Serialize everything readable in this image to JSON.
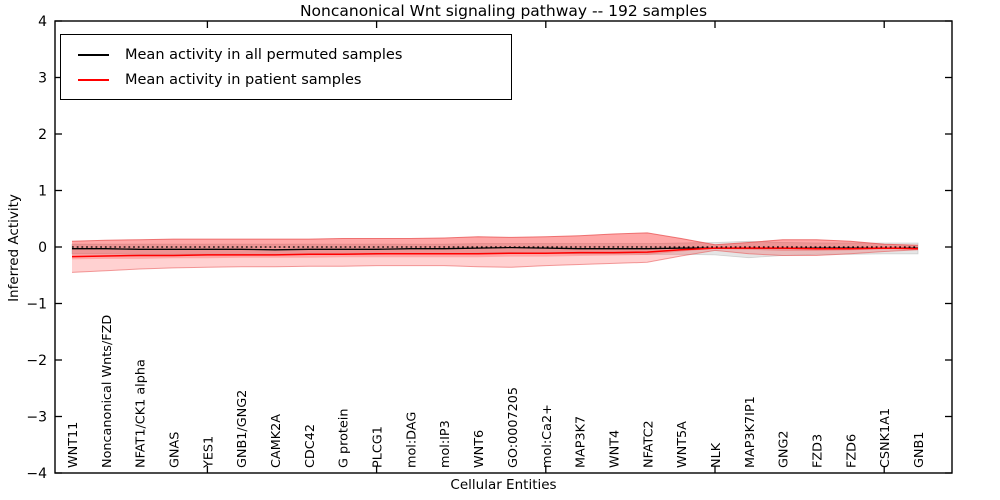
{
  "title": "Noncanonical Wnt signaling pathway -- 192 samples",
  "axes": {
    "ylabel": "Inferred Activity",
    "xlabel": "Cellular Entities"
  },
  "legend": {
    "items": [
      {
        "label": "Mean activity in all permuted samples",
        "color": "#000000"
      },
      {
        "label": "Mean activity in patient samples",
        "color": "#ff0000"
      }
    ]
  },
  "colors": {
    "permuted_line": "#000000",
    "patient_line": "#ff0000",
    "patient_band_fill": "#ff0000",
    "patient_band_edge": "#e85050",
    "permuted_band_fill": "#000000",
    "permuted_band_edge": "#bbbbbb",
    "zero_line": "#000000",
    "frame": "#000000"
  },
  "chart_data": {
    "type": "line",
    "title": "Noncanonical Wnt signaling pathway -- 192 samples",
    "xlabel": "Cellular Entities",
    "ylabel": "Inferred Activity",
    "ylim": [
      -4,
      4
    ],
    "yticks": [
      4,
      3,
      2,
      1,
      0,
      -1,
      -2,
      -3,
      -4
    ],
    "x_major_tick_indices": [
      4,
      9,
      14,
      19,
      24
    ],
    "legend_position": "upper left",
    "grid": false,
    "zero_reference_line": 0,
    "categories": [
      "WNT11",
      "Noncanonical Wnts/FZD",
      "NFAT1/CK1 alpha",
      "GNAS",
      "YES1",
      "GNB1/GNG2",
      "CAMK2A",
      "CDC42",
      "G protein",
      "PLCG1",
      "mol:DAG",
      "mol:IP3",
      "WNT6",
      "GO:0007205",
      "mol:Ca2+",
      "MAP3K7",
      "WNT4",
      "NFATC2",
      "WNT5A",
      "NLK",
      "MAP3K7IP1",
      "GNG2",
      "FZD3",
      "FZD6",
      "CSNK1A1",
      "GNB1"
    ],
    "series": [
      {
        "name": "Mean activity in all permuted samples",
        "values": [
          -0.03,
          -0.03,
          -0.04,
          -0.04,
          -0.04,
          -0.04,
          -0.05,
          -0.04,
          -0.04,
          -0.04,
          -0.03,
          -0.03,
          -0.02,
          -0.01,
          -0.02,
          -0.03,
          -0.03,
          -0.03,
          -0.02,
          -0.02,
          -0.02,
          -0.02,
          -0.02,
          -0.02,
          -0.02,
          -0.02
        ],
        "band_upper": [
          0.05,
          0.05,
          0.05,
          0.05,
          0.05,
          0.05,
          0.05,
          0.05,
          0.05,
          0.05,
          0.05,
          0.05,
          0.06,
          0.06,
          0.06,
          0.06,
          0.06,
          0.06,
          0.07,
          0.08,
          0.1,
          0.08,
          0.07,
          0.07,
          0.07,
          0.07
        ],
        "band_lower": [
          -0.12,
          -0.12,
          -0.13,
          -0.13,
          -0.13,
          -0.13,
          -0.14,
          -0.13,
          -0.13,
          -0.13,
          -0.12,
          -0.12,
          -0.11,
          -0.1,
          -0.11,
          -0.12,
          -0.12,
          -0.13,
          -0.13,
          -0.14,
          -0.19,
          -0.15,
          -0.13,
          -0.13,
          -0.12,
          -0.12
        ]
      },
      {
        "name": "Mean activity in patient samples",
        "values": [
          -0.17,
          -0.16,
          -0.15,
          -0.15,
          -0.14,
          -0.14,
          -0.14,
          -0.13,
          -0.13,
          -0.12,
          -0.12,
          -0.12,
          -0.12,
          -0.11,
          -0.11,
          -0.1,
          -0.1,
          -0.09,
          -0.05,
          -0.02,
          -0.02,
          -0.02,
          -0.03,
          -0.03,
          -0.02,
          -0.03
        ],
        "band_upper": [
          0.1,
          0.12,
          0.13,
          0.14,
          0.14,
          0.14,
          0.14,
          0.14,
          0.15,
          0.15,
          0.15,
          0.16,
          0.18,
          0.17,
          0.18,
          0.2,
          0.23,
          0.25,
          0.15,
          0.04,
          0.08,
          0.13,
          0.13,
          0.1,
          0.05,
          0.03
        ],
        "band_lower": [
          -0.45,
          -0.42,
          -0.39,
          -0.37,
          -0.36,
          -0.35,
          -0.35,
          -0.34,
          -0.34,
          -0.33,
          -0.33,
          -0.33,
          -0.35,
          -0.36,
          -0.33,
          -0.31,
          -0.29,
          -0.27,
          -0.16,
          -0.06,
          -0.12,
          -0.15,
          -0.15,
          -0.12,
          -0.08,
          -0.05
        ],
        "inner_band_upper": [
          0.1,
          0.12,
          0.13,
          0.14,
          0.14,
          0.14,
          0.14,
          0.14,
          0.15,
          0.15,
          0.15,
          0.16,
          0.18,
          0.17,
          0.18,
          0.2,
          0.23,
          0.25,
          0.15,
          0.04,
          0.08,
          0.13,
          0.13,
          0.1,
          0.05,
          0.03
        ],
        "inner_band_lower": [
          -0.22,
          -0.21,
          -0.21,
          -0.2,
          -0.2,
          -0.19,
          -0.19,
          -0.19,
          -0.18,
          -0.18,
          -0.18,
          -0.18,
          -0.18,
          -0.17,
          -0.17,
          -0.16,
          -0.15,
          -0.14,
          -0.08,
          -0.03,
          -0.05,
          -0.07,
          -0.07,
          -0.06,
          -0.04,
          -0.04
        ]
      }
    ]
  }
}
